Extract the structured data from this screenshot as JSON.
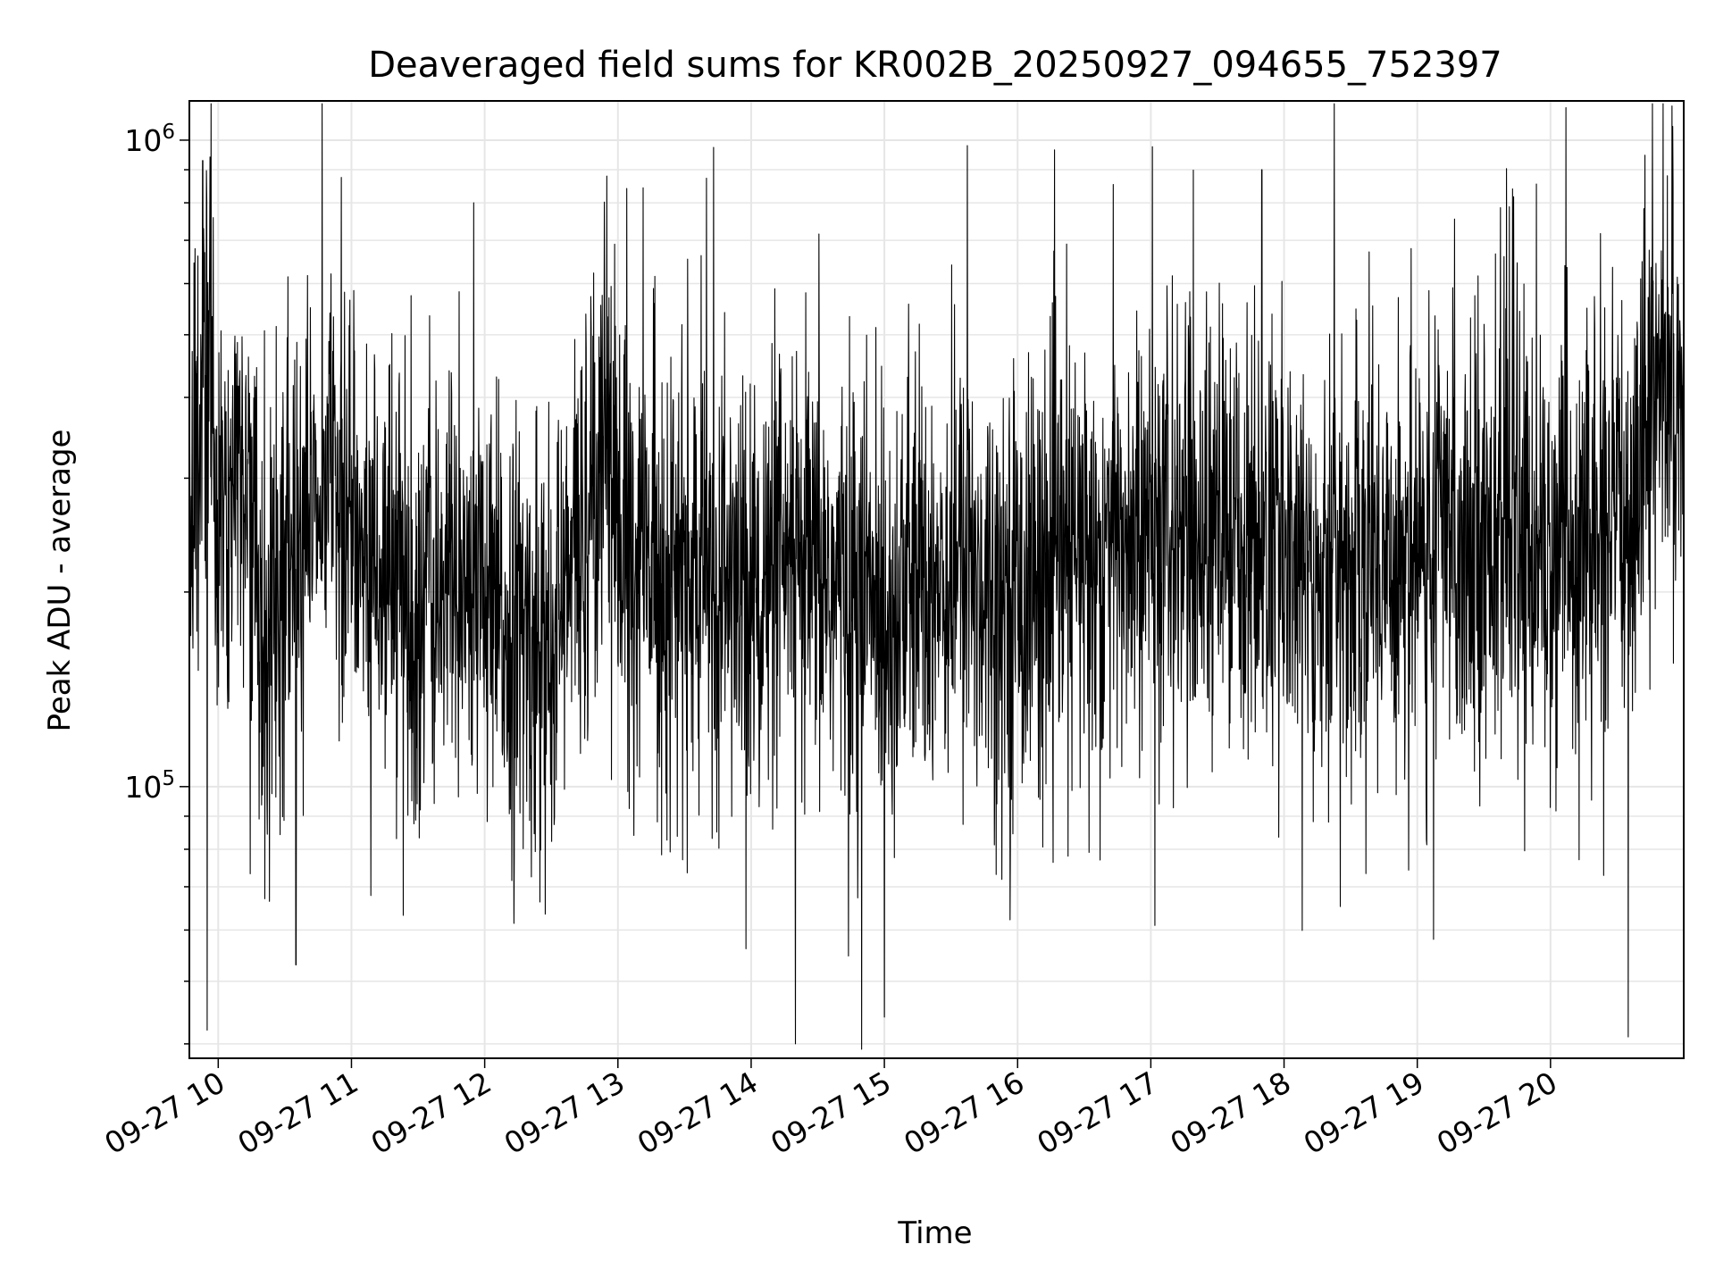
{
  "chart_data": {
    "type": "line",
    "title": "Deaveraged field sums for KR002B_20250927_094655_752397",
    "xlabel": "Time",
    "ylabel": "Peak ADU - average",
    "yscale": "log",
    "ylim": [
      38000,
      1150000
    ],
    "xlim": [
      "2025-09-27 09:47",
      "2025-09-27 21:00"
    ],
    "grid": true,
    "x_ticks": [
      {
        "value": "2025-09-27 10:00",
        "label": "09-27 10"
      },
      {
        "value": "2025-09-27 11:00",
        "label": "09-27 11"
      },
      {
        "value": "2025-09-27 12:00",
        "label": "09-27 12"
      },
      {
        "value": "2025-09-27 13:00",
        "label": "09-27 13"
      },
      {
        "value": "2025-09-27 14:00",
        "label": "09-27 14"
      },
      {
        "value": "2025-09-27 15:00",
        "label": "09-27 15"
      },
      {
        "value": "2025-09-27 16:00",
        "label": "09-27 16"
      },
      {
        "value": "2025-09-27 17:00",
        "label": "09-27 17"
      },
      {
        "value": "2025-09-27 18:00",
        "label": "09-27 18"
      },
      {
        "value": "2025-09-27 19:00",
        "label": "09-27 19"
      },
      {
        "value": "2025-09-27 20:00",
        "label": "09-27 20"
      }
    ],
    "y_ticks": [
      {
        "value": 100000,
        "base": "10",
        "exp": "5"
      },
      {
        "value": 1000000,
        "base": "10",
        "exp": "6"
      }
    ],
    "series": [
      {
        "color": "#000000",
        "points": [
          [
            "2025-09-27 09:47",
            220000
          ],
          [
            "2025-09-27 09:52",
            400000
          ],
          [
            "2025-09-27 09:55",
            520000
          ],
          [
            "2025-09-27 10:00",
            260000
          ],
          [
            "2025-09-27 10:10",
            300000
          ],
          [
            "2025-09-27 10:20",
            180000
          ],
          [
            "2025-09-27 10:30",
            240000
          ],
          [
            "2025-09-27 10:40",
            280000
          ],
          [
            "2025-09-27 10:50",
            310000
          ],
          [
            "2025-09-27 11:00",
            260000
          ],
          [
            "2025-09-27 11:15",
            220000
          ],
          [
            "2025-09-27 11:30",
            190000
          ],
          [
            "2025-09-27 11:45",
            210000
          ],
          [
            "2025-09-27 12:00",
            180000
          ],
          [
            "2025-09-27 12:15",
            170000
          ],
          [
            "2025-09-27 12:30",
            160000
          ],
          [
            "2025-09-27 12:45",
            260000
          ],
          [
            "2025-09-27 12:55",
            400000
          ],
          [
            "2025-09-27 13:00",
            240000
          ],
          [
            "2025-09-27 13:30",
            210000
          ],
          [
            "2025-09-27 14:00",
            200000
          ],
          [
            "2025-09-27 14:30",
            210000
          ],
          [
            "2025-09-27 15:00",
            190000
          ],
          [
            "2025-09-27 15:30",
            220000
          ],
          [
            "2025-09-27 16:00",
            200000
          ],
          [
            "2025-09-27 16:30",
            230000
          ],
          [
            "2025-09-27 17:00",
            240000
          ],
          [
            "2025-09-27 17:30",
            250000
          ],
          [
            "2025-09-27 18:00",
            230000
          ],
          [
            "2025-09-27 18:30",
            220000
          ],
          [
            "2025-09-27 19:00",
            240000
          ],
          [
            "2025-09-27 19:30",
            250000
          ],
          [
            "2025-09-27 20:00",
            230000
          ],
          [
            "2025-09-27 20:30",
            240000
          ],
          [
            "2025-09-27 20:45",
            420000
          ],
          [
            "2025-09-27 21:00",
            400000
          ]
        ],
        "extremes": [
          [
            "2025-09-27 09:53",
            930000
          ],
          [
            "2025-09-27 09:55",
            42000
          ],
          [
            "2025-09-27 10:35",
            53000
          ],
          [
            "2025-09-27 11:55",
            800000
          ],
          [
            "2025-09-27 12:55",
            880000
          ],
          [
            "2025-09-27 14:20",
            40000
          ],
          [
            "2025-09-27 15:00",
            44000
          ],
          [
            "2025-09-27 17:50",
            900000
          ],
          [
            "2025-09-27 20:35",
            41000
          ],
          [
            "2025-09-27 20:55",
            1050000
          ]
        ]
      }
    ]
  }
}
